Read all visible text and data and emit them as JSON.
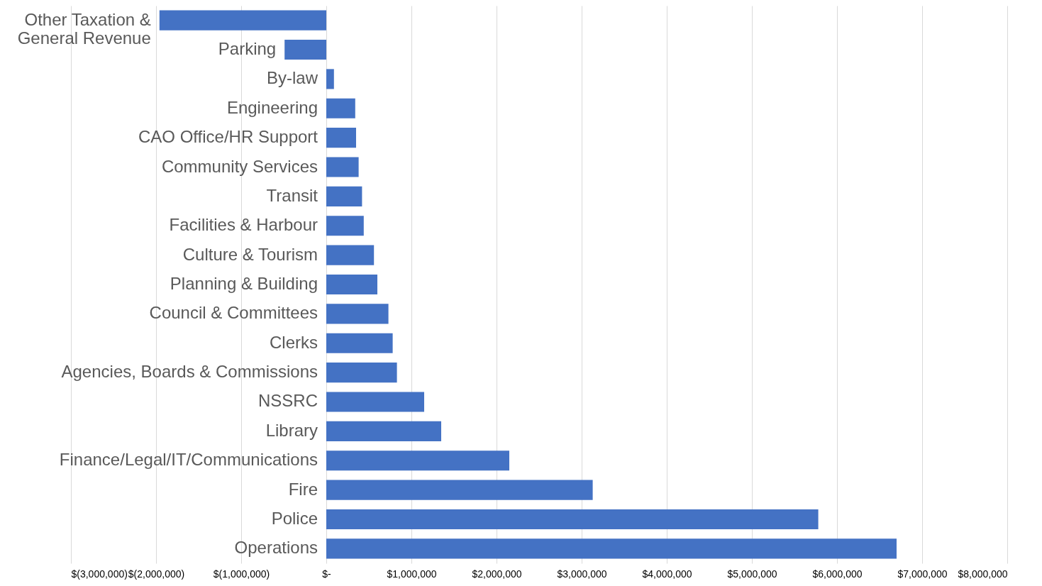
{
  "chart_data": {
    "type": "bar",
    "orientation": "horizontal",
    "categories": [
      "Other Taxation & General Revenue",
      "Parking",
      "By-law",
      "Engineering",
      "CAO Office/HR Support",
      "Community Services",
      "Transit",
      "Facilities & Harbour",
      "Culture & Tourism",
      "Planning & Building",
      "Council & Committees",
      "Clerks",
      "Agencies, Boards & Commissions",
      "NSSRC",
      "Library",
      "Finance/Legal/IT/Communications",
      "Fire",
      "Police",
      "Operations"
    ],
    "values": [
      -1960000,
      -490000,
      90000,
      340000,
      350000,
      380000,
      420000,
      440000,
      560000,
      600000,
      730000,
      780000,
      830000,
      1150000,
      1350000,
      2150000,
      3130000,
      5780000,
      6700000
    ],
    "color": "#4472c4",
    "xlim": [
      -3000000,
      8000000
    ],
    "xticks": [
      {
        "value": -3000000,
        "label": "$(3,000,000)"
      },
      {
        "value": -2000000,
        "label": "$(2,000,000)"
      },
      {
        "value": -1000000,
        "label": "$(1,000,000)"
      },
      {
        "value": 0,
        "label": "$-"
      },
      {
        "value": 1000000,
        "label": "$1,000,000"
      },
      {
        "value": 2000000,
        "label": "$2,000,000"
      },
      {
        "value": 3000000,
        "label": "$3,000,000"
      },
      {
        "value": 4000000,
        "label": "$4,000,000"
      },
      {
        "value": 5000000,
        "label": "$5,000,000"
      },
      {
        "value": 6000000,
        "label": "$6,000,000"
      },
      {
        "value": 7000000,
        "label": "$7,000,000"
      },
      {
        "value": 8000000,
        "label": "$8,000,000"
      }
    ],
    "grid": "x"
  }
}
